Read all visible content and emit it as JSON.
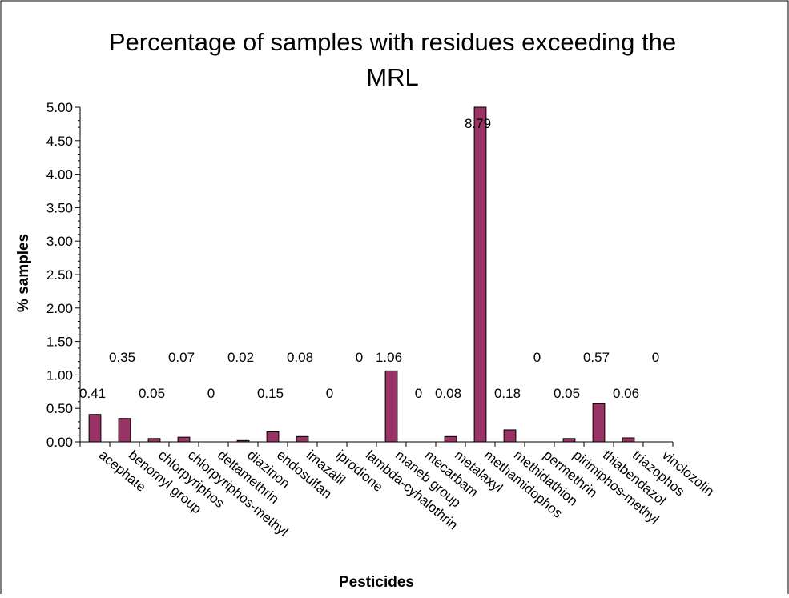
{
  "chart_data": {
    "type": "bar",
    "title_lines": [
      "Percentage of samples with residues exceeding the",
      "MRL"
    ],
    "xlabel": "Pesticides",
    "ylabel": "% samples",
    "ylim": [
      0,
      5
    ],
    "yticks": [
      "0.00",
      "0.50",
      "1.00",
      "1.50",
      "2.00",
      "2.50",
      "3.00",
      "3.50",
      "4.00",
      "4.50",
      "5.00"
    ],
    "categories": [
      "acephate",
      "benomyl group",
      "chlorpyriphos",
      "chlorpyriphos-methyl",
      "deltamethrin",
      "diazinon",
      "endosulfan",
      "imazalil",
      "iprodione",
      "lambda-cyhalothrin",
      "maneb group",
      "mecarbam",
      "metalaxyl",
      "methamidophos",
      "methidathion",
      "permethrin",
      "pirimiphos-methyl",
      "thiabendazol",
      "triazophos",
      "vinclozolin"
    ],
    "values": [
      0.41,
      0.35,
      0.05,
      0.07,
      0,
      0.02,
      0.15,
      0.08,
      0,
      0,
      1.06,
      0,
      0.08,
      8.79,
      0.18,
      0,
      0.05,
      0.57,
      0.06,
      0
    ],
    "value_labels": [
      "0.41",
      "0.35",
      "0.05",
      "0.07",
      "0",
      "0.02",
      "0.15",
      "0.08",
      "0",
      "0",
      "1.06",
      "0",
      "0.08",
      "8.79",
      "0.18",
      "0",
      "0.05",
      "0.57",
      "0.06",
      "0"
    ],
    "bar_color": "#993366",
    "grid": false,
    "legend": "none"
  }
}
